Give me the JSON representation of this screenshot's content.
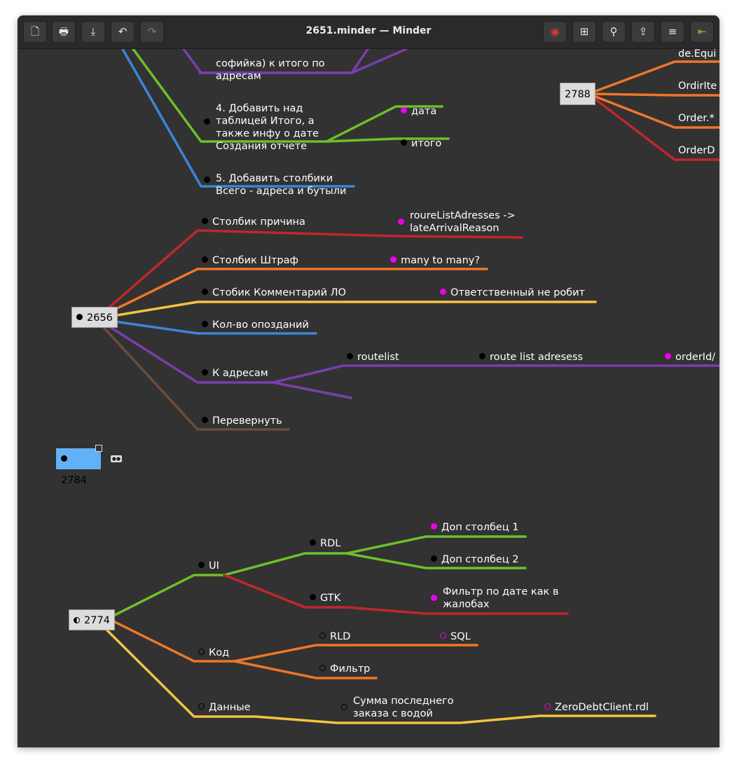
{
  "window": {
    "title": "2651.minder — Minder"
  },
  "toolbar": {
    "left": [
      {
        "name": "new-file-icon",
        "glyph": "🗋"
      },
      {
        "name": "print-icon",
        "glyph": "🖶"
      },
      {
        "name": "download-icon",
        "glyph": "⤓"
      },
      {
        "name": "undo-icon",
        "glyph": "↶"
      },
      {
        "name": "redo-icon",
        "glyph": "↷"
      }
    ],
    "right": [
      {
        "name": "focus-target-icon",
        "glyph": "◉"
      },
      {
        "name": "zoom-fit-icon",
        "glyph": "⊞"
      },
      {
        "name": "search-icon",
        "glyph": "🔍"
      },
      {
        "name": "export-icon",
        "glyph": "⇪"
      },
      {
        "name": "menu-icon",
        "glyph": "≡"
      },
      {
        "name": "sidebar-icon",
        "glyph": "⇤"
      }
    ]
  },
  "colors": {
    "red": "#c0272d",
    "orange": "#ef7628",
    "yellow": "#f6c342",
    "blue": "#3b86d8",
    "green": "#6fbf2a",
    "purple": "#7a3ead",
    "brown": "#6b4e3a",
    "magenta": "#ee00ee",
    "selection": "#62b0f5",
    "canvas": "#323232"
  },
  "top_fragment": {
    "text_partial": "софийка) к итого по",
    "text_line2": "адресам",
    "add_above_1": "4. Добавить над",
    "add_above_2": "таблицей Итого, а",
    "add_above_3": "также инфу о дате",
    "add_above_4": "Создания отчете",
    "date": "дата",
    "total": "итого",
    "add_cols_1": "5. Добавить столбики",
    "add_cols_2": "Всего - адреса и бутыли"
  },
  "map_2788": {
    "root": "2788",
    "children": [
      "de.Equi",
      "OrdirIte",
      "Order.*",
      "OrderD"
    ]
  },
  "map_2656": {
    "root": "2656",
    "reason": "Столбик причина",
    "reason_note_1": "roureListAdresses ->",
    "reason_note_2": "lateArrivalReason",
    "fine": "Столбик Штраф",
    "fine_note": "many to many?",
    "comment": "Стобик Комментарий ЛО",
    "comment_note": "Ответственный не робит",
    "late_count": "Кол-во опозданий",
    "to_addresses": "К адресам",
    "routelist": "routelist",
    "route_list_adresess": "route list adresess",
    "order_id": "orderId/",
    "flip": "Перевернуть"
  },
  "map_2784": {
    "root": "2784"
  },
  "map_2774": {
    "root": "2774",
    "ui": "UI",
    "rdl": "RDL",
    "extra_col_1": "Доп столбец 1",
    "extra_col_2": "Доп столбец 2",
    "gtk": "GTK",
    "filter_note_1": "Фильтр по дате как в",
    "filter_note_2": "жалобах",
    "code": "Код",
    "rld": "RLD",
    "sql": "SQL",
    "filter": "Фильтр",
    "data": "Данные",
    "sum_last_1": "Сумма последнего",
    "sum_last_2": "заказа с водой",
    "zero_debt": "ZeroDebtClient.rdl"
  }
}
